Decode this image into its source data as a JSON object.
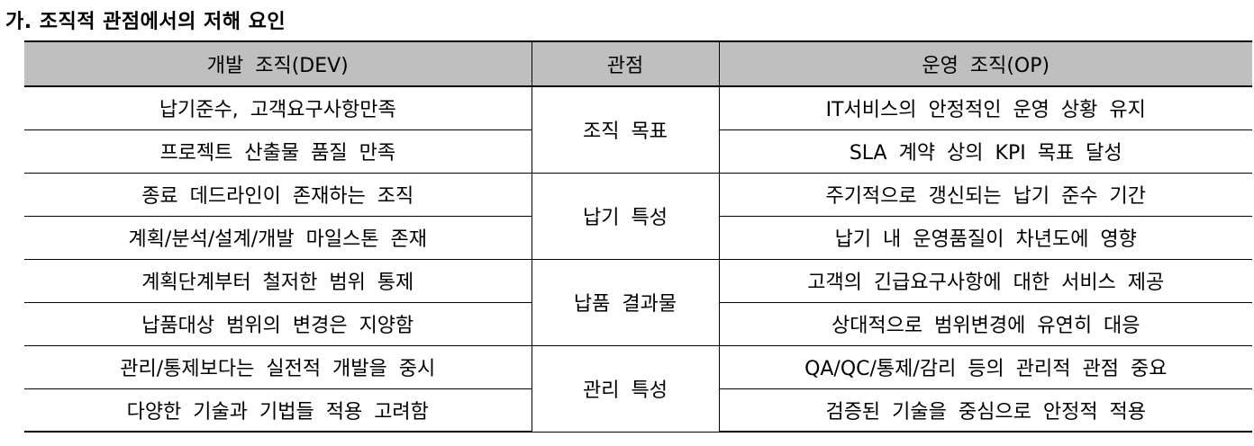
{
  "heading": "가. 조직적 관점에서의 저해 요인",
  "table": {
    "headers": [
      "개발 조직(DEV)",
      "관점",
      "운영 조직(OP)"
    ],
    "groups": [
      {
        "perspective": "조직 목표",
        "rows": [
          {
            "dev": "납기준수, 고객요구사항만족",
            "op": "IT서비스의 안정적인 운영 상황 유지"
          },
          {
            "dev": "프로젝트 산출물 품질 만족",
            "op": "SLA 계약 상의 KPI 목표 달성"
          }
        ]
      },
      {
        "perspective": "납기 특성",
        "rows": [
          {
            "dev": "종료 데드라인이 존재하는 조직",
            "op": "주기적으로 갱신되는 납기 준수 기간"
          },
          {
            "dev": "계획/분석/설계/개발 마일스톤 존재",
            "op": "납기 내 운영품질이 차년도에 영향"
          }
        ]
      },
      {
        "perspective": "납품 결과물",
        "rows": [
          {
            "dev": "계획단계부터 철저한 범위 통제",
            "op": "고객의 긴급요구사항에 대한 서비스 제공"
          },
          {
            "dev": "납품대상 범위의 변경은 지양함",
            "op": "상대적으로 범위변경에 유연히 대응"
          }
        ]
      },
      {
        "perspective": "관리 특성",
        "rows": [
          {
            "dev": "관리/통제보다는 실전적 개발을 중시",
            "op": "QA/QC/통제/감리 등의 관리적 관점 중요"
          },
          {
            "dev": "다양한 기술과 기법들 적용 고려함",
            "op": "검증된 기술을 중심으로 안정적 적용"
          }
        ]
      }
    ]
  }
}
